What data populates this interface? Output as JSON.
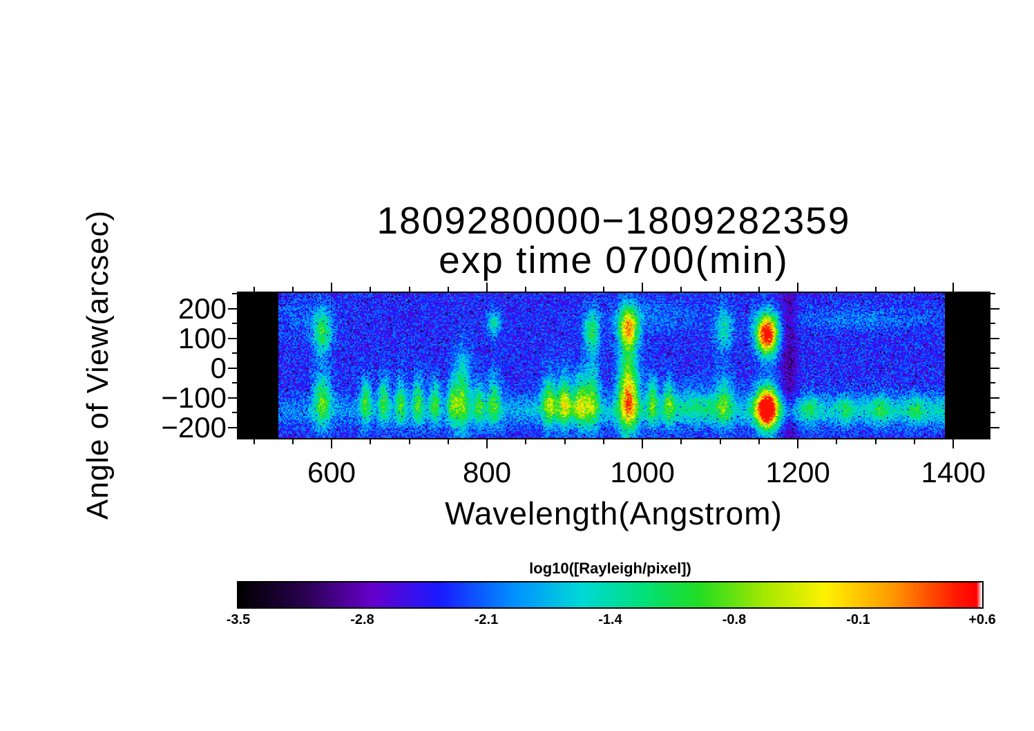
{
  "title": {
    "line1": "1809280000−1809282359",
    "line2": "exp time 0700(min)"
  },
  "colorbar": {
    "label": "log10([Rayleigh/pixel])",
    "tick_labels": [
      "-3.5",
      "-2.8",
      "-2.1",
      "-1.4",
      "-0.8",
      "-0.1",
      "+0.6"
    ],
    "min": -3.5,
    "max": 0.6
  },
  "chart_data": {
    "type": "heatmap",
    "title": "1809280000−1809282359 exp time 0700(min)",
    "xlabel": "Wavelength(Angstrom)",
    "ylabel": "Angle of View(arcsec)",
    "xlim": [
      480,
      1446
    ],
    "ylim": [
      -235,
      253
    ],
    "x_ticks": [
      {
        "v": 600,
        "label": "600"
      },
      {
        "v": 800,
        "label": "800"
      },
      {
        "v": 1000,
        "label": "1000"
      },
      {
        "v": 1200,
        "label": "1200"
      },
      {
        "v": 1400,
        "label": "1400"
      }
    ],
    "y_ticks": [
      {
        "v": 200,
        "label": "200"
      },
      {
        "v": 100,
        "label": "100"
      },
      {
        "v": 0,
        "label": "0"
      },
      {
        "v": -100,
        "label": "−100"
      },
      {
        "v": -200,
        "label": "−200"
      }
    ],
    "x_minor_step": 50,
    "y_minor_step": 50,
    "x_major_step": 200,
    "y_major_step": 100,
    "value_label": "log10([Rayleigh/pixel])",
    "value_range": [
      -3.5,
      0.6
    ],
    "data_lambda_range": [
      531,
      1389
    ],
    "background": {
      "base": -2.38,
      "noise": 0.34
    },
    "airglow_band": {
      "a_center": -142,
      "a_sigma": 36,
      "amp_left": 0.35,
      "amp_right": 0.85
    },
    "colormap": [
      {
        "t": 0.0,
        "c": "#000000"
      },
      {
        "t": 0.09,
        "c": "#2a0050"
      },
      {
        "t": 0.18,
        "c": "#6600cc"
      },
      {
        "t": 0.27,
        "c": "#1a1aff"
      },
      {
        "t": 0.37,
        "c": "#0090ff"
      },
      {
        "t": 0.46,
        "c": "#00d8d8"
      },
      {
        "t": 0.54,
        "c": "#00e080"
      },
      {
        "t": 0.62,
        "c": "#22dd22"
      },
      {
        "t": 0.71,
        "c": "#a8e800"
      },
      {
        "t": 0.79,
        "c": "#fff200"
      },
      {
        "t": 0.88,
        "c": "#ff9900"
      },
      {
        "t": 0.965,
        "c": "#ff1a00"
      },
      {
        "t": 0.993,
        "c": "#ff0000"
      },
      {
        "t": 1.0,
        "c": "#ffffff"
      }
    ],
    "features": [
      {
        "l": 588,
        "sl": 8,
        "parts": [
          {
            "a": 120,
            "s": 52,
            "amp": 1.35
          },
          {
            "a": -108,
            "s": 66,
            "amp": 1.3
          }
        ]
      },
      {
        "l": 644,
        "sl": 5,
        "parts": [
          {
            "a": -112,
            "s": 55,
            "amp": 1.15
          }
        ]
      },
      {
        "l": 667,
        "sl": 5,
        "parts": [
          {
            "a": -106,
            "s": 55,
            "amp": 1.2
          }
        ]
      },
      {
        "l": 689,
        "sl": 5,
        "parts": [
          {
            "a": -112,
            "s": 55,
            "amp": 1.15
          }
        ]
      },
      {
        "l": 711,
        "sl": 5,
        "parts": [
          {
            "a": -108,
            "s": 58,
            "amp": 1.2
          }
        ]
      },
      {
        "l": 733,
        "sl": 5,
        "parts": [
          {
            "a": -112,
            "s": 56,
            "amp": 1.1
          }
        ]
      },
      {
        "l": 756,
        "sl": 5,
        "parts": [
          {
            "a": -110,
            "s": 58,
            "amp": 1.15
          }
        ]
      },
      {
        "l": 769,
        "sl": 7,
        "parts": [
          {
            "a": -85,
            "s": 95,
            "amp": 1.3
          }
        ]
      },
      {
        "l": 790,
        "sl": 5,
        "parts": [
          {
            "a": -120,
            "s": 50,
            "amp": 1.1
          }
        ]
      },
      {
        "l": 809,
        "sl": 6,
        "parts": [
          {
            "a": 150,
            "s": 28,
            "amp": 1.0
          },
          {
            "a": -110,
            "s": 60,
            "amp": 1.15
          }
        ]
      },
      {
        "l": 880,
        "sl": 6,
        "parts": [
          {
            "a": -108,
            "s": 65,
            "amp": 1.2
          }
        ]
      },
      {
        "l": 900,
        "sl": 6,
        "parts": [
          {
            "a": -106,
            "s": 66,
            "amp": 1.25
          }
        ]
      },
      {
        "l": 920,
        "sl": 6,
        "parts": [
          {
            "a": -108,
            "s": 66,
            "amp": 1.2
          }
        ]
      },
      {
        "l": 900,
        "sl": 22,
        "parts": [
          {
            "a": -122,
            "s": 42,
            "amp": 0.45
          }
        ]
      },
      {
        "l": 935,
        "sl": 7,
        "parts": [
          {
            "a": 122,
            "s": 50,
            "amp": 1.3
          },
          {
            "a": -100,
            "s": 78,
            "amp": 1.25
          }
        ]
      },
      {
        "l": 982,
        "sl": 9,
        "parts": [
          {
            "a": 135,
            "s": 52,
            "amp": 2.35
          },
          {
            "a": -90,
            "s": 92,
            "amp": 2.4
          }
        ]
      },
      {
        "l": 1013,
        "sl": 5,
        "parts": [
          {
            "a": -108,
            "s": 58,
            "amp": 1.15
          }
        ]
      },
      {
        "l": 1034,
        "sl": 5,
        "parts": [
          {
            "a": -112,
            "s": 55,
            "amp": 1.1
          }
        ]
      },
      {
        "l": 1070,
        "sl": 22,
        "parts": [
          {
            "a": -120,
            "s": 46,
            "amp": 0.5
          }
        ]
      },
      {
        "l": 1105,
        "sl": 8,
        "parts": [
          {
            "a": 128,
            "s": 52,
            "amp": 0.95
          },
          {
            "a": -108,
            "s": 64,
            "amp": 0.95
          }
        ]
      },
      {
        "l": 1160,
        "sl": 10,
        "parts": [
          {
            "a": 114,
            "s": 47,
            "amp": 3.3
          },
          {
            "a": -135,
            "s": 51,
            "amp": 3.35
          }
        ]
      },
      {
        "l": 1188,
        "sl": 7,
        "parts": [
          {
            "a": 0,
            "s": 400,
            "amp": -0.5
          }
        ]
      },
      {
        "l": 1215,
        "sl": 6,
        "parts": [
          {
            "a": -138,
            "s": 34,
            "amp": 0.6
          }
        ]
      },
      {
        "l": 1262,
        "sl": 6,
        "parts": [
          {
            "a": -140,
            "s": 34,
            "amp": 0.55
          }
        ]
      },
      {
        "l": 1306,
        "sl": 7,
        "parts": [
          {
            "a": -140,
            "s": 34,
            "amp": 0.6
          }
        ]
      },
      {
        "l": 1352,
        "sl": 6,
        "parts": [
          {
            "a": -142,
            "s": 34,
            "amp": 0.55
          }
        ]
      },
      {
        "l": 1285,
        "sl": 70,
        "parts": [
          {
            "a": 165,
            "s": 26,
            "amp": 0.35
          }
        ]
      },
      {
        "l": 1018,
        "sl": 45,
        "parts": [
          {
            "a": 175,
            "s": 38,
            "amp": 0.3
          }
        ]
      },
      {
        "l": 565,
        "sl": 28,
        "parts": [
          {
            "a": 170,
            "s": 45,
            "amp": 0.22
          }
        ]
      }
    ]
  }
}
